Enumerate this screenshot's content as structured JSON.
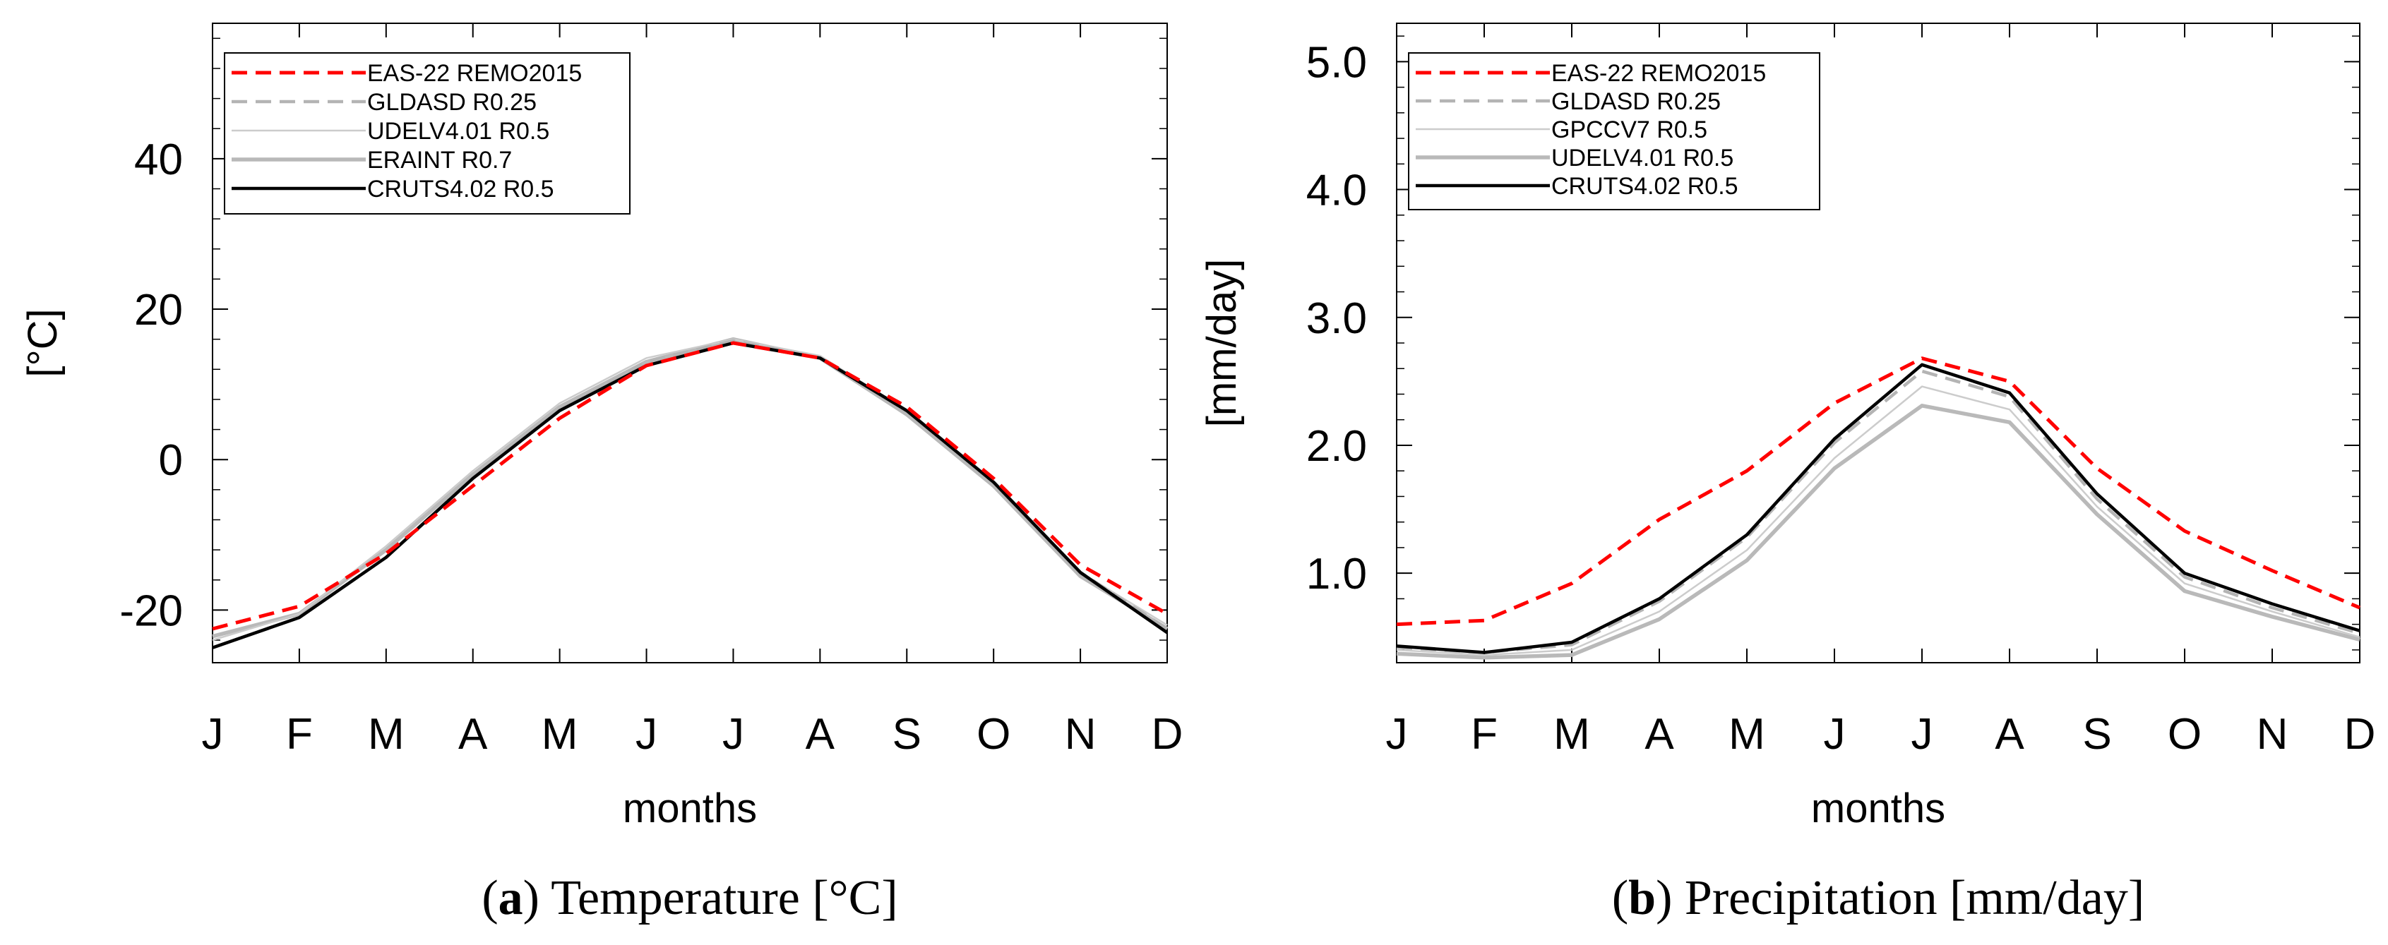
{
  "chart_data": [
    {
      "type": "line",
      "title": "",
      "caption_letter": "a",
      "caption_text": "Temperature [°C]",
      "xlabel": "months",
      "ylabel": "[°C]",
      "categories": [
        "J",
        "F",
        "M",
        "A",
        "M",
        "J",
        "J",
        "A",
        "S",
        "O",
        "N",
        "D"
      ],
      "ylim": [
        -27,
        58
      ],
      "yticks": [
        -20,
        0,
        20,
        40
      ],
      "ytick_labels": [
        "-20",
        "0",
        "20",
        "40"
      ],
      "grid": false,
      "legend_position": "top-left",
      "series": [
        {
          "name": "EAS-22 REMO2015",
          "style": "red-dashed",
          "values": [
            -22.5,
            -19.5,
            -12.5,
            -3.5,
            5.5,
            12.5,
            15.5,
            13.5,
            7,
            -2.5,
            -14,
            -20.5
          ]
        },
        {
          "name": "GLDASD R0.25",
          "style": "gray-dashed",
          "values": [
            -25,
            -21,
            -13,
            -2.5,
            6.5,
            13,
            15.8,
            13.5,
            6.5,
            -3,
            -15,
            -22.5
          ]
        },
        {
          "name": "UDELV4.01 R0.5",
          "style": "lightgray-thin",
          "values": [
            -24,
            -20.5,
            -11.5,
            -1.5,
            7.5,
            13.5,
            16,
            13.8,
            6.5,
            -3,
            -15,
            -22
          ]
        },
        {
          "name": "ERAINT R0.7",
          "style": "gray-thick",
          "values": [
            -23.5,
            -20.5,
            -12,
            -2,
            7,
            13,
            16,
            13.5,
            6,
            -3.5,
            -15.5,
            -22.5
          ]
        },
        {
          "name": "CRUTS4.02 R0.5",
          "style": "black-solid",
          "values": [
            -25,
            -21,
            -13,
            -2.5,
            6.5,
            12.5,
            15.5,
            13.5,
            6.5,
            -3,
            -15,
            -23
          ]
        }
      ]
    },
    {
      "type": "line",
      "title": "",
      "caption_letter": "b",
      "caption_text": "Precipitation [mm/day]",
      "xlabel": "months",
      "ylabel": "[mm/day]",
      "categories": [
        "J",
        "F",
        "M",
        "A",
        "M",
        "J",
        "J",
        "A",
        "S",
        "O",
        "N",
        "D"
      ],
      "ylim": [
        0.3,
        5.3
      ],
      "yticks": [
        1.0,
        2.0,
        3.0,
        4.0,
        5.0
      ],
      "ytick_labels": [
        "1.0",
        "2.0",
        "3.0",
        "4.0",
        "5.0"
      ],
      "grid": false,
      "legend_position": "top-left",
      "series": [
        {
          "name": "EAS-22 REMO2015",
          "style": "red-dashed",
          "values": [
            0.6,
            0.63,
            0.92,
            1.42,
            1.8,
            2.33,
            2.68,
            2.5,
            1.82,
            1.33,
            1.02,
            0.73
          ]
        },
        {
          "name": "GLDASD R0.25",
          "style": "gray-dashed",
          "values": [
            0.42,
            0.38,
            0.44,
            0.78,
            1.28,
            2.02,
            2.58,
            2.38,
            1.58,
            0.97,
            0.73,
            0.53
          ]
        },
        {
          "name": "GPCCV7 R0.5",
          "style": "lightgray-thin",
          "values": [
            0.4,
            0.36,
            0.4,
            0.7,
            1.18,
            1.9,
            2.46,
            2.28,
            1.52,
            0.92,
            0.7,
            0.5
          ]
        },
        {
          "name": "UDELV4.01 R0.5",
          "style": "gray-thick",
          "values": [
            0.37,
            0.34,
            0.36,
            0.64,
            1.1,
            1.82,
            2.31,
            2.18,
            1.46,
            0.86,
            0.66,
            0.48
          ]
        },
        {
          "name": "CRUTS4.02 R0.5",
          "style": "black-solid",
          "values": [
            0.43,
            0.38,
            0.46,
            0.8,
            1.3,
            2.05,
            2.63,
            2.41,
            1.62,
            1.0,
            0.76,
            0.55
          ]
        }
      ]
    }
  ]
}
